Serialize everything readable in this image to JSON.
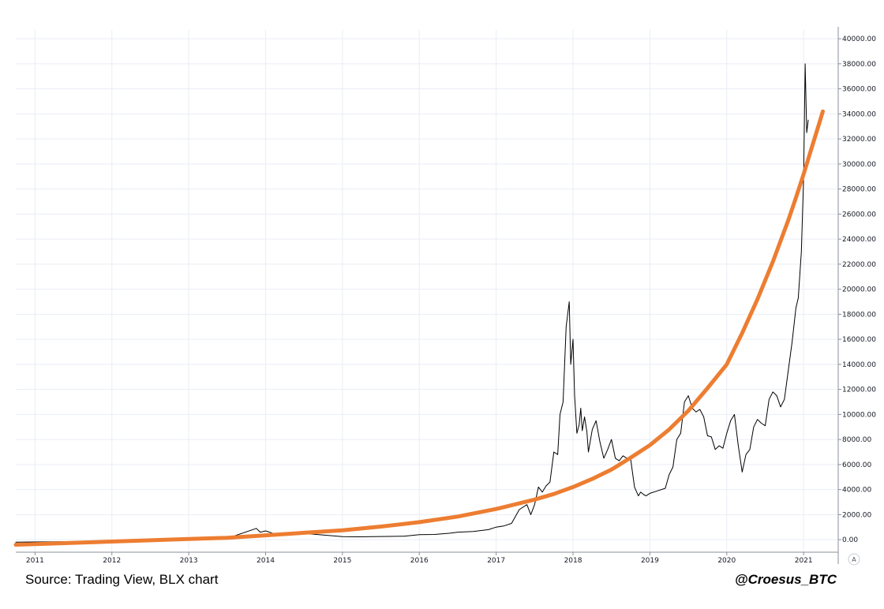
{
  "chart_data": {
    "type": "line",
    "title": "",
    "xlabel": "",
    "ylabel": "",
    "x_range": [
      2010.75,
      2021.45
    ],
    "ylim": [
      -1000,
      40700
    ],
    "grid": true,
    "y_ticks": [
      0,
      2000,
      4000,
      6000,
      8000,
      10000,
      12000,
      14000,
      16000,
      18000,
      20000,
      22000,
      24000,
      26000,
      28000,
      30000,
      32000,
      34000,
      36000,
      38000,
      40000
    ],
    "y_tick_labels": [
      "0.00",
      "2000.00",
      "4000.00",
      "6000.00",
      "8000.00",
      "10000.00",
      "12000.00",
      "14000.00",
      "16000.00",
      "18000.00",
      "20000.00",
      "22000.00",
      "24000.00",
      "26000.00",
      "28000.00",
      "30000.00",
      "32000.00",
      "34000.00",
      "36000.00",
      "38000.00",
      "40000.00"
    ],
    "x_ticks": [
      2011,
      2012,
      2013,
      2014,
      2015,
      2016,
      2017,
      2018,
      2019,
      2020,
      2021
    ],
    "x_tick_labels": [
      "2011",
      "2012",
      "2013",
      "2014",
      "2015",
      "2016",
      "2017",
      "2018",
      "2019",
      "2020",
      "2021"
    ],
    "series": [
      {
        "color": "#000000",
        "x": [
          2010.75,
          2011.5,
          2012.5,
          2013.0,
          2013.5,
          2013.88,
          2013.93,
          2014.0,
          2014.1,
          2014.2,
          2014.35,
          2014.45,
          2014.6,
          2014.8,
          2015.0,
          2015.2,
          2015.4,
          2015.6,
          2015.8,
          2016.0,
          2016.2,
          2016.4,
          2016.5,
          2016.7,
          2016.9,
          2017.0,
          2017.1,
          2017.2,
          2017.3,
          2017.4,
          2017.45,
          2017.5,
          2017.55,
          2017.6,
          2017.65,
          2017.7,
          2017.75,
          2017.8,
          2017.83,
          2017.87,
          2017.91,
          2017.95,
          2017.97,
          2018.0,
          2018.02,
          2018.05,
          2018.08,
          2018.1,
          2018.12,
          2018.15,
          2018.18,
          2018.2,
          2018.25,
          2018.3,
          2018.35,
          2018.4,
          2018.45,
          2018.5,
          2018.55,
          2018.6,
          2018.65,
          2018.7,
          2018.75,
          2018.8,
          2018.85,
          2018.88,
          2018.92,
          2018.95,
          2019.0,
          2019.1,
          2019.2,
          2019.25,
          2019.3,
          2019.35,
          2019.4,
          2019.45,
          2019.5,
          2019.55,
          2019.6,
          2019.65,
          2019.7,
          2019.75,
          2019.8,
          2019.85,
          2019.9,
          2019.95,
          2020.0,
          2020.05,
          2020.1,
          2020.15,
          2020.2,
          2020.25,
          2020.3,
          2020.35,
          2020.4,
          2020.45,
          2020.5,
          2020.55,
          2020.6,
          2020.65,
          2020.7,
          2020.75,
          2020.8,
          2020.85,
          2020.9,
          2020.93,
          2020.97,
          2021.0,
          2021.02,
          2021.04,
          2021.06
        ],
        "y": [
          -200,
          -150,
          -100,
          -50,
          100,
          900,
          600,
          700,
          500,
          450,
          600,
          550,
          450,
          350,
          250,
          230,
          240,
          260,
          280,
          400,
          420,
          520,
          600,
          650,
          800,
          1000,
          1100,
          1300,
          2400,
          2800,
          2000,
          2800,
          4200,
          3800,
          4300,
          4600,
          7000,
          6800,
          10000,
          11000,
          17000,
          19000,
          14000,
          16000,
          11500,
          8500,
          9200,
          10500,
          8700,
          9800,
          8600,
          7000,
          8800,
          9500,
          7800,
          6500,
          7200,
          8000,
          6500,
          6300,
          6700,
          6500,
          6400,
          4200,
          3500,
          3800,
          3600,
          3500,
          3700,
          3900,
          4100,
          5200,
          5800,
          8000,
          8500,
          11000,
          11500,
          10500,
          10200,
          10400,
          9800,
          8300,
          8200,
          7200,
          7500,
          7300,
          8500,
          9500,
          10000,
          7500,
          5400,
          6800,
          7200,
          9000,
          9600,
          9300,
          9100,
          11200,
          11800,
          11500,
          10600,
          11200,
          13500,
          15800,
          18500,
          19300,
          23000,
          29000,
          38000,
          32500,
          33500
        ]
      },
      {
        "color": "#ED7D31",
        "x": [
          2010.75,
          2011.0,
          2011.5,
          2012.0,
          2012.5,
          2013.0,
          2013.5,
          2014.0,
          2014.5,
          2015.0,
          2015.5,
          2016.0,
          2016.5,
          2017.0,
          2017.5,
          2017.75,
          2018.0,
          2018.25,
          2018.5,
          2018.75,
          2019.0,
          2019.25,
          2019.5,
          2019.75,
          2020.0,
          2020.2,
          2020.4,
          2020.6,
          2020.8,
          2020.9,
          2021.0,
          2021.1,
          2021.2,
          2021.25
        ],
        "y": [
          -400,
          -350,
          -250,
          -150,
          -50,
          50,
          150,
          350,
          550,
          750,
          1050,
          1400,
          1850,
          2450,
          3200,
          3650,
          4200,
          4850,
          5600,
          6550,
          7550,
          8800,
          10300,
          12100,
          14000,
          16500,
          19200,
          22200,
          25500,
          27300,
          29200,
          31200,
          33200,
          34200
        ]
      }
    ],
    "annotations": [
      "Source: Trading View, BLX chart",
      "@Croesus_BTC"
    ]
  },
  "footer": {
    "source": "Source: Trading View, BLX chart",
    "handle": "@Croesus_BTC"
  },
  "ui": {
    "autoscale_label": "A"
  }
}
